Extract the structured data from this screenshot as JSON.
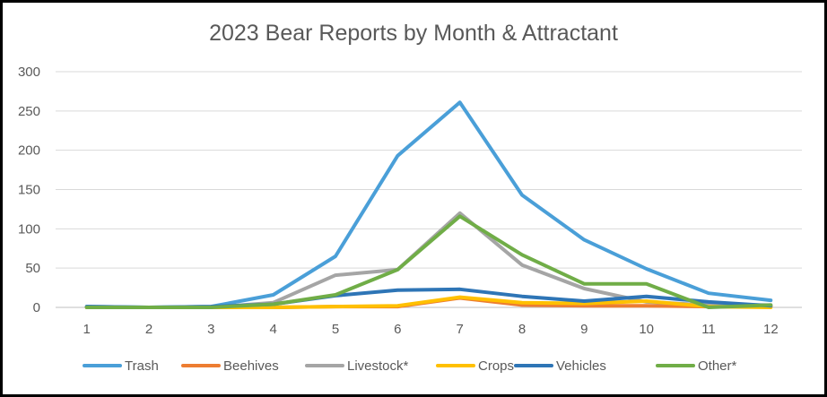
{
  "chart_data": {
    "type": "line",
    "title": "2023 Bear Reports by Month & Attractant",
    "xlabel": "",
    "ylabel": "",
    "x": [
      1,
      2,
      3,
      4,
      5,
      6,
      7,
      8,
      9,
      10,
      11,
      12
    ],
    "ylim": [
      0,
      300
    ],
    "yticks": [
      0,
      50,
      100,
      150,
      200,
      250,
      300
    ],
    "grid": true,
    "legend_position": "bottom",
    "series": [
      {
        "name": "Trash",
        "color": "#4a9fd8",
        "values": [
          1,
          0,
          1,
          16,
          65,
          193,
          261,
          143,
          86,
          49,
          18,
          9
        ]
      },
      {
        "name": "Beehives",
        "color": "#ed7d31",
        "values": [
          0,
          0,
          0,
          0,
          1,
          1,
          12,
          3,
          2,
          2,
          1,
          1
        ]
      },
      {
        "name": "Livestock*",
        "color": "#a5a5a5",
        "values": [
          0,
          0,
          0,
          6,
          41,
          48,
          120,
          54,
          24,
          7,
          3,
          3
        ]
      },
      {
        "name": "Crops",
        "color": "#ffc000",
        "values": [
          0,
          0,
          0,
          0,
          1,
          2,
          13,
          6,
          5,
          8,
          1,
          0
        ]
      },
      {
        "name": "Vehicles",
        "color": "#2e75b6",
        "values": [
          1,
          0,
          1,
          4,
          15,
          22,
          23,
          14,
          8,
          14,
          7,
          2
        ]
      },
      {
        "name": "Other*",
        "color": "#70ad47",
        "values": [
          0,
          0,
          0,
          4,
          16,
          48,
          116,
          67,
          30,
          30,
          0,
          3
        ]
      }
    ]
  }
}
